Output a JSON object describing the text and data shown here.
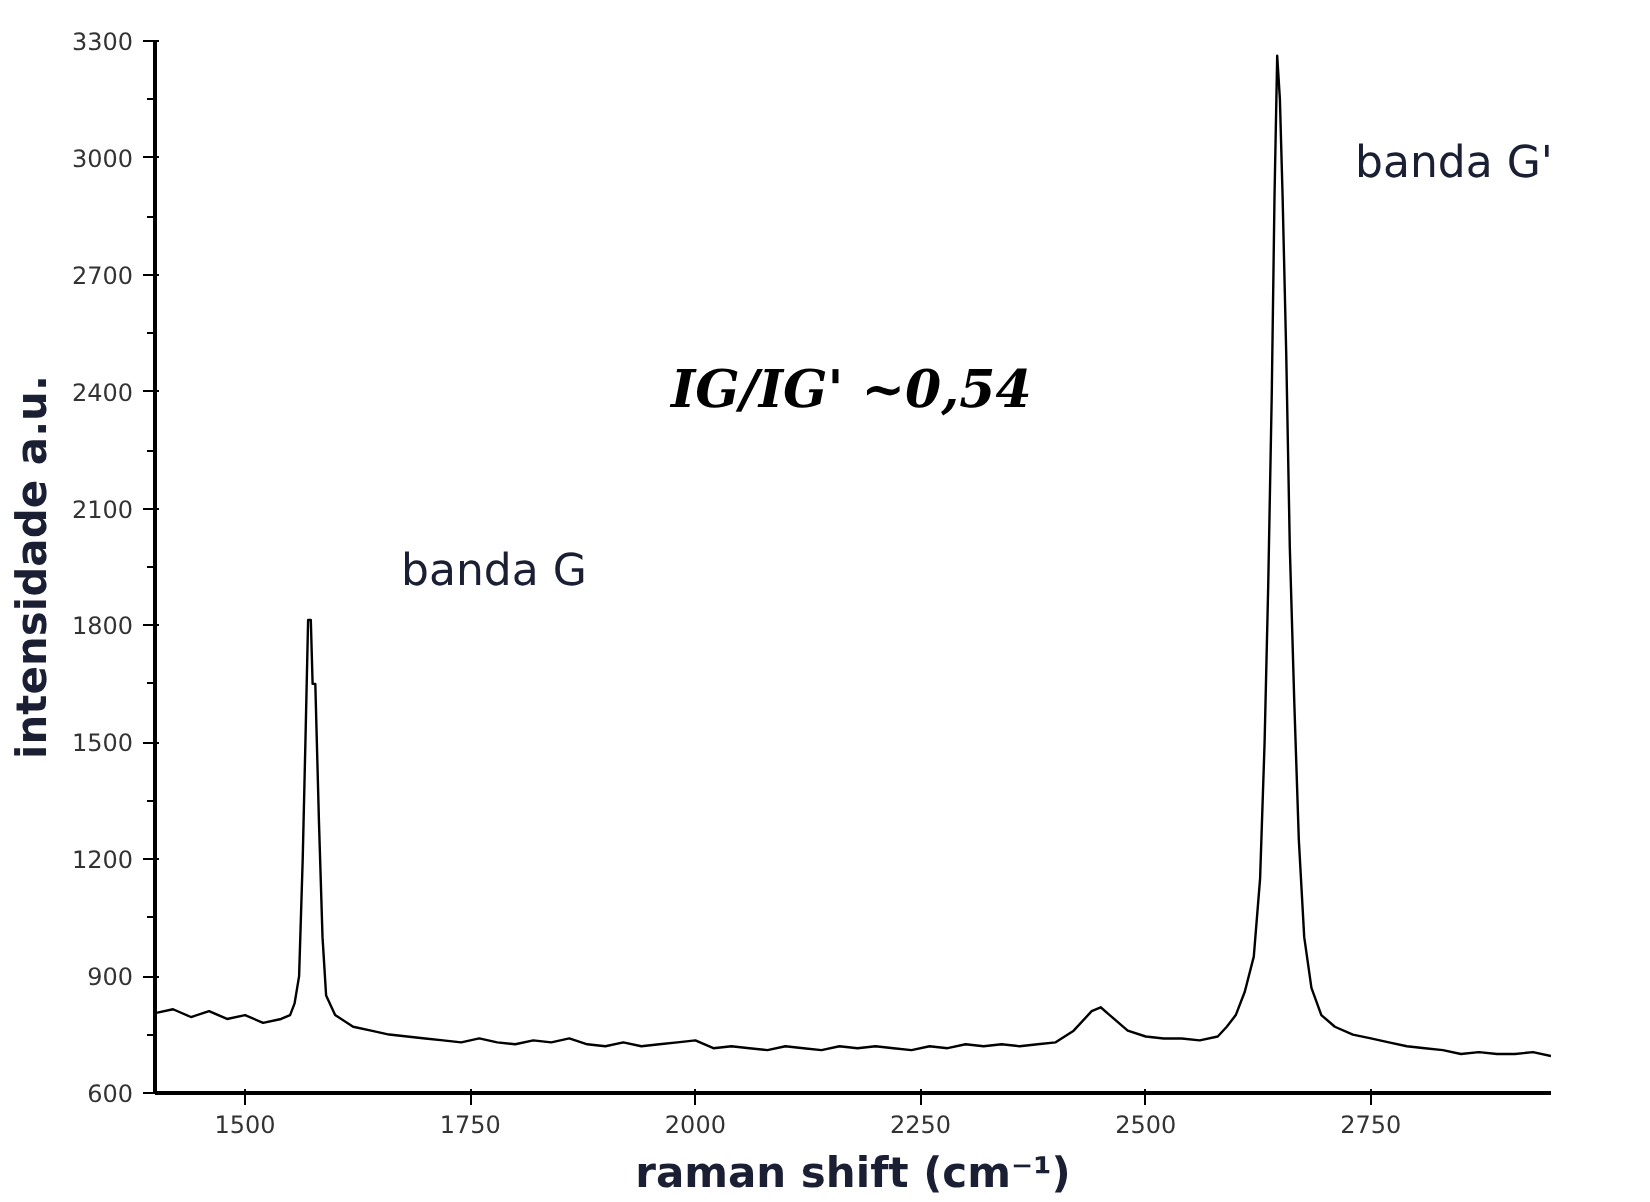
{
  "chart_data": {
    "type": "line",
    "xlabel": "raman shift (cm⁻¹)",
    "ylabel": "intensidade a.u.",
    "xlim": [
      1400,
      2950
    ],
    "ylim": [
      600,
      3300
    ],
    "xticks": [
      1500,
      1750,
      2000,
      2250,
      2500,
      2750
    ],
    "yticks": [
      600,
      900,
      1200,
      1500,
      1800,
      2100,
      2400,
      2700,
      3000,
      3300
    ],
    "grid": false,
    "marker": "none",
    "line_style": "solid",
    "annotations": [
      "banda G",
      "banda G'",
      "IG/IG' ~0,54"
    ],
    "series": [
      {
        "color": "#000000",
        "x": [
          1400,
          1420,
          1440,
          1460,
          1480,
          1500,
          1520,
          1540,
          1550,
          1555,
          1560,
          1564,
          1567,
          1570,
          1573,
          1575,
          1578,
          1582,
          1586,
          1590,
          1600,
          1620,
          1640,
          1660,
          1680,
          1700,
          1720,
          1740,
          1760,
          1780,
          1800,
          1820,
          1840,
          1860,
          1880,
          1900,
          1920,
          1940,
          1960,
          1980,
          2000,
          2020,
          2040,
          2060,
          2080,
          2100,
          2120,
          2140,
          2160,
          2180,
          2200,
          2220,
          2240,
          2260,
          2280,
          2300,
          2320,
          2340,
          2360,
          2380,
          2400,
          2420,
          2440,
          2450,
          2460,
          2480,
          2500,
          2520,
          2540,
          2560,
          2580,
          2590,
          2600,
          2610,
          2620,
          2627,
          2632,
          2636,
          2640,
          2643,
          2646,
          2649,
          2652,
          2656,
          2660,
          2665,
          2670,
          2676,
          2684,
          2695,
          2710,
          2730,
          2750,
          2770,
          2790,
          2810,
          2830,
          2850,
          2870,
          2890,
          2910,
          2930,
          2950
        ],
        "values": [
          805,
          815,
          795,
          810,
          790,
          800,
          780,
          790,
          800,
          830,
          900,
          1200,
          1500,
          1814,
          1814,
          1650,
          1650,
          1300,
          1000,
          850,
          800,
          770,
          760,
          750,
          745,
          740,
          735,
          730,
          740,
          730,
          725,
          735,
          730,
          740,
          725,
          720,
          730,
          720,
          725,
          730,
          735,
          715,
          720,
          715,
          710,
          720,
          715,
          710,
          720,
          715,
          720,
          715,
          710,
          720,
          715,
          725,
          720,
          725,
          720,
          725,
          730,
          760,
          810,
          820,
          800,
          760,
          745,
          740,
          740,
          735,
          745,
          770,
          800,
          860,
          950,
          1150,
          1500,
          1900,
          2400,
          2900,
          3262,
          3150,
          2900,
          2500,
          2000,
          1600,
          1250,
          1000,
          870,
          800,
          770,
          750,
          740,
          730,
          720,
          715,
          710,
          700,
          705,
          700,
          700,
          705,
          695
        ]
      }
    ]
  }
}
